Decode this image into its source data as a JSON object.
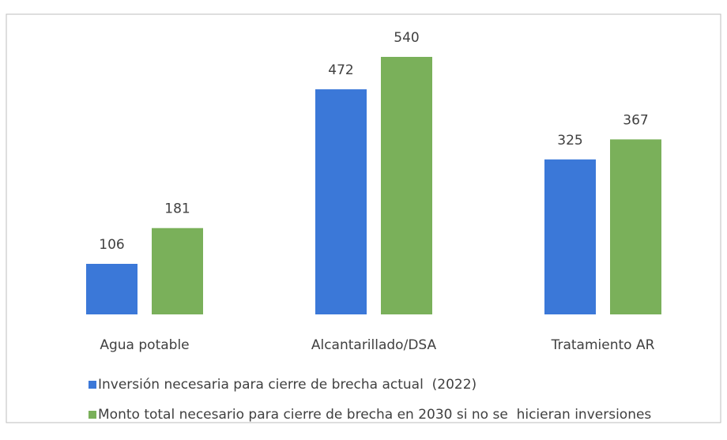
{
  "chart_data": {
    "type": "bar",
    "categories": [
      "Agua potable",
      "Alcantarillado/DSA",
      "Tratamiento AR"
    ],
    "series": [
      {
        "name": "Inversión necesaria para cierre de brecha actual  (2022)",
        "color": "#3b78d8",
        "values": [
          106,
          472,
          325
        ]
      },
      {
        "name": "Monto total necesario para cierre de brecha en 2030 si no se  hicieran inversiones",
        "color": "#7ab05a",
        "values": [
          181,
          540,
          367
        ]
      }
    ]
  }
}
